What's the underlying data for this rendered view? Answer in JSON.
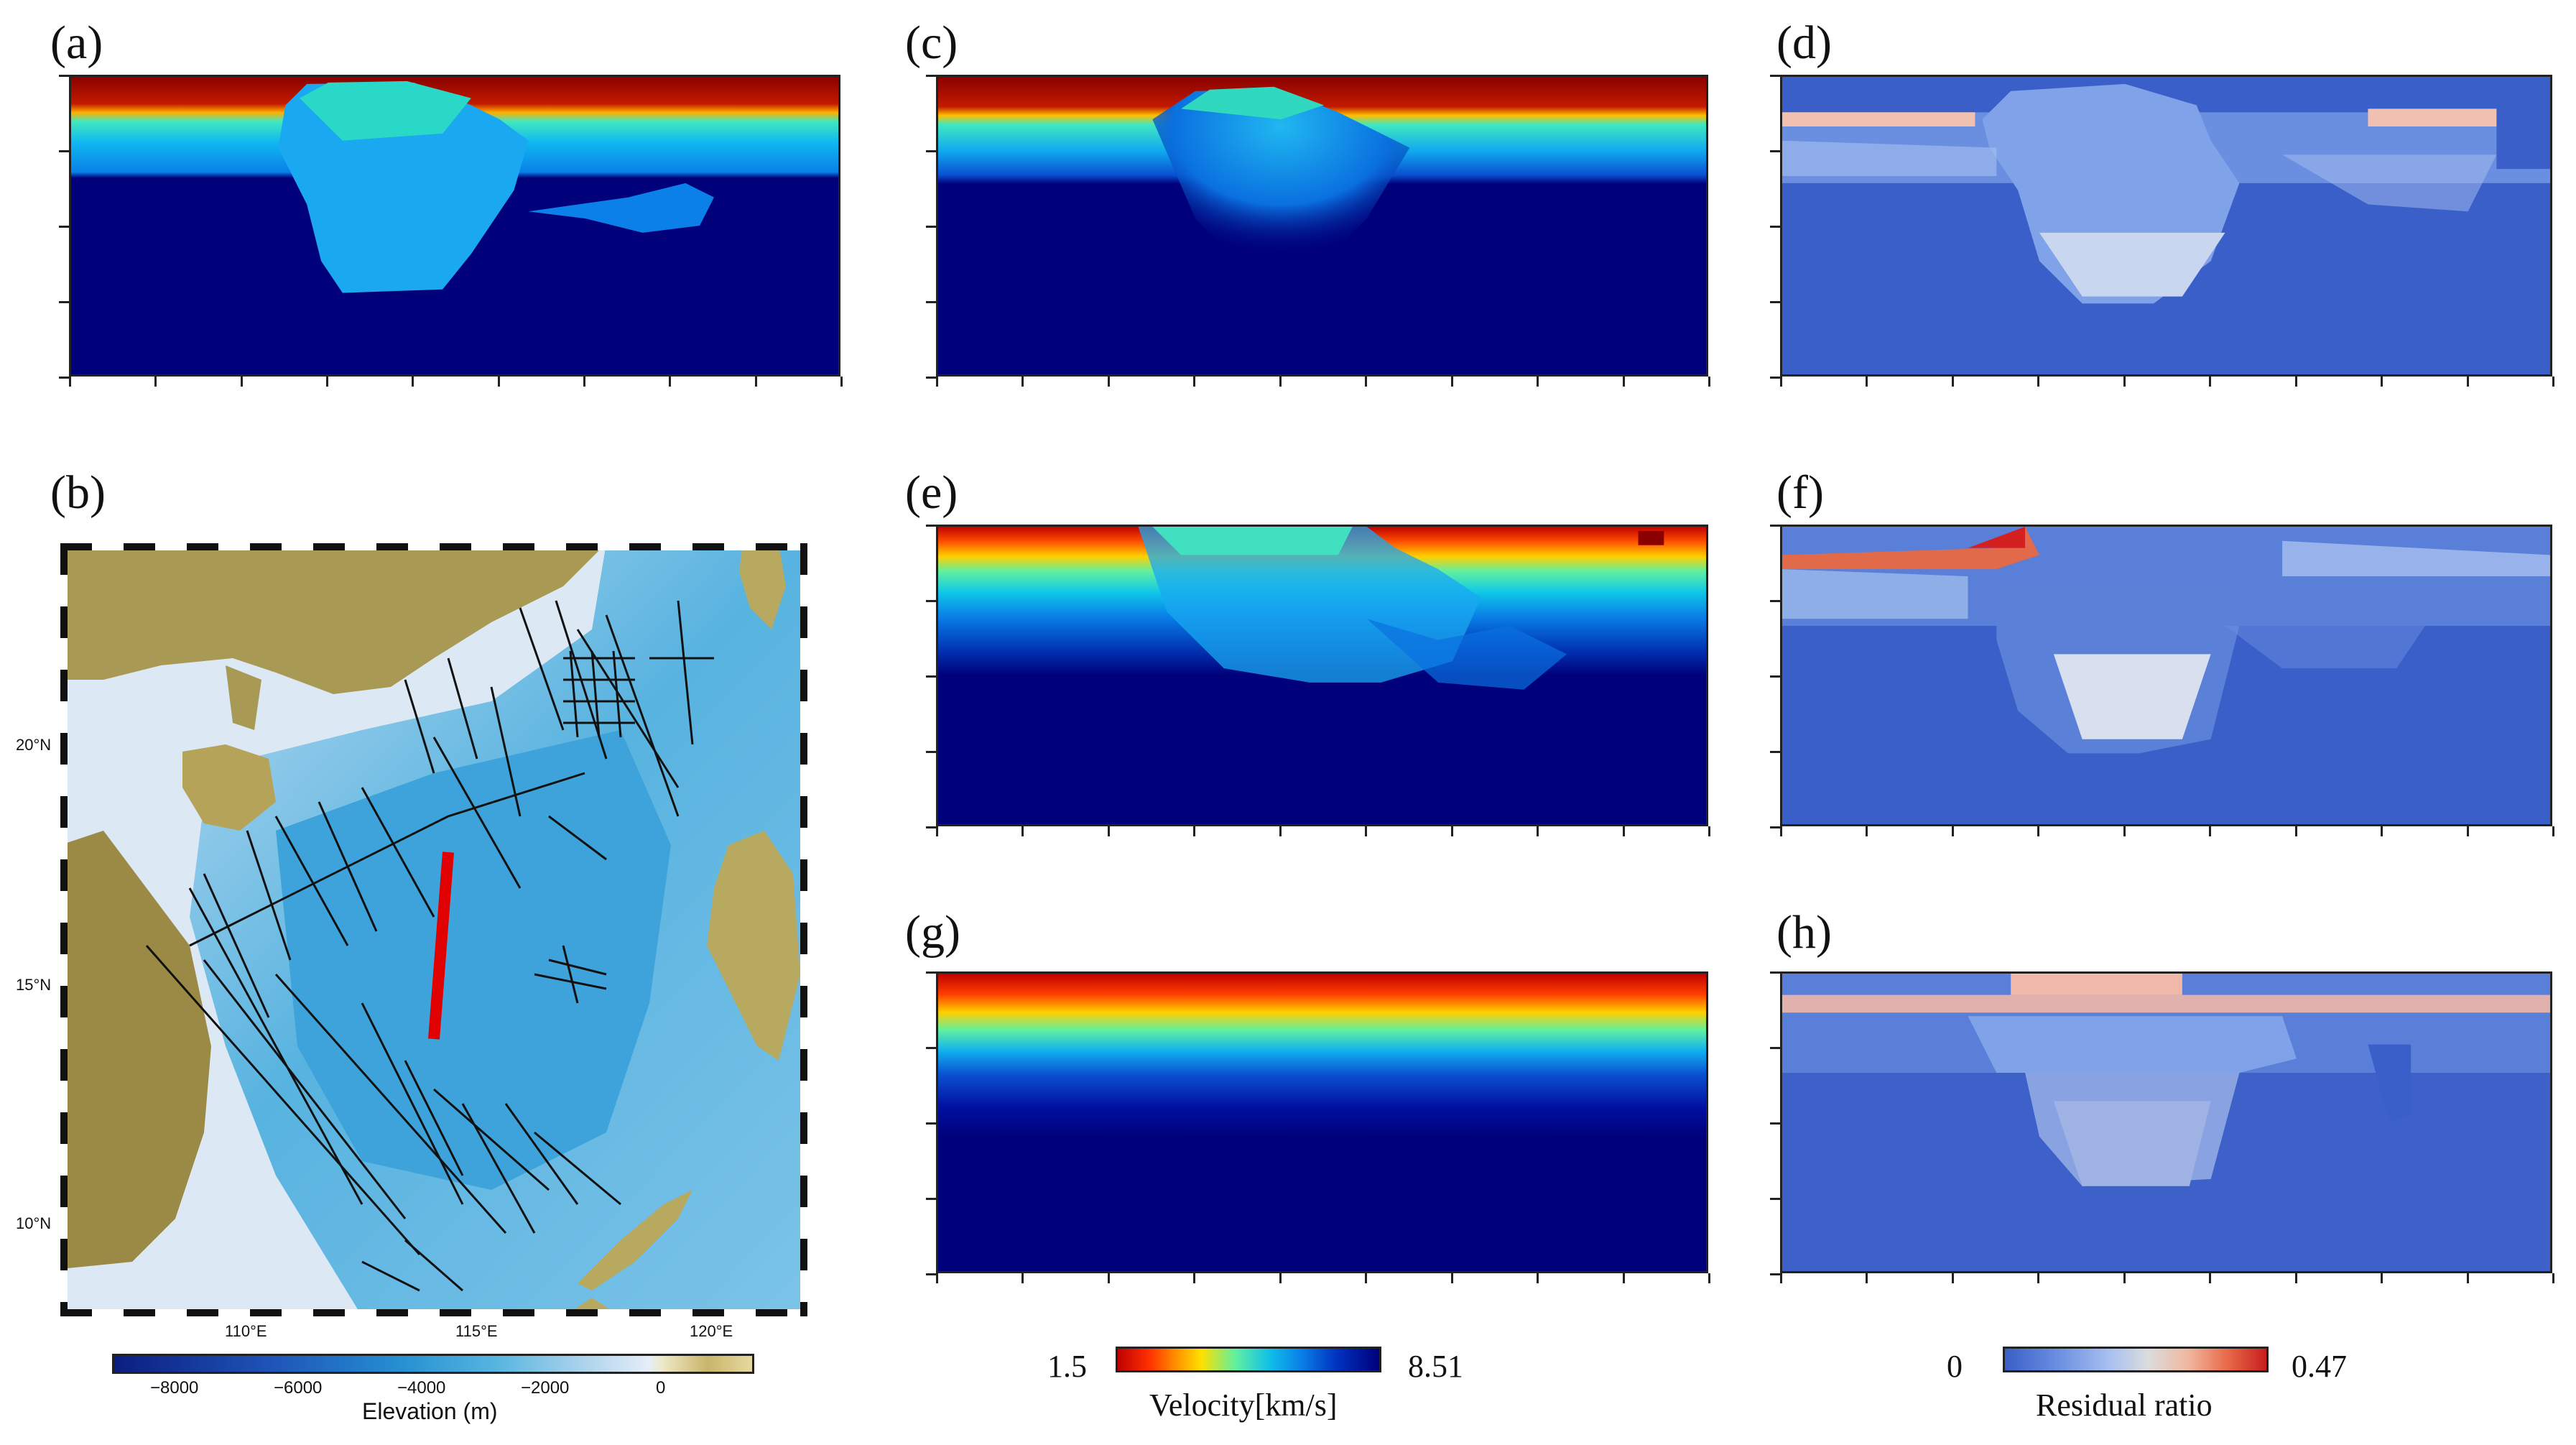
{
  "panels": {
    "a": {
      "label": "(a)"
    },
    "b": {
      "label": "(b)"
    },
    "c": {
      "label": "(c)"
    },
    "d": {
      "label": "(d)"
    },
    "e": {
      "label": "(e)"
    },
    "f": {
      "label": "(f)"
    },
    "g": {
      "label": "(g)"
    },
    "h": {
      "label": "(h)"
    }
  },
  "map": {
    "lat_ticks": [
      "20°N",
      "15°N",
      "10°N"
    ],
    "lon_ticks": [
      "110°E",
      "115°E",
      "120°E"
    ]
  },
  "elevation_colorbar": {
    "ticks": [
      "−8000",
      "−6000",
      "−4000",
      "−2000",
      "0"
    ],
    "title": "Elevation (m)"
  },
  "velocity_colorbar": {
    "min": "1.5",
    "max": "8.51",
    "title": "Velocity[km/s]"
  },
  "residual_colorbar": {
    "min": "0",
    "max": "0.47",
    "title": "Residual ratio"
  },
  "colors": {
    "velocity_low": "#c00000",
    "velocity_high": "#00007a",
    "residual_low": "#3b63c9",
    "residual_high": "#d42020"
  }
}
